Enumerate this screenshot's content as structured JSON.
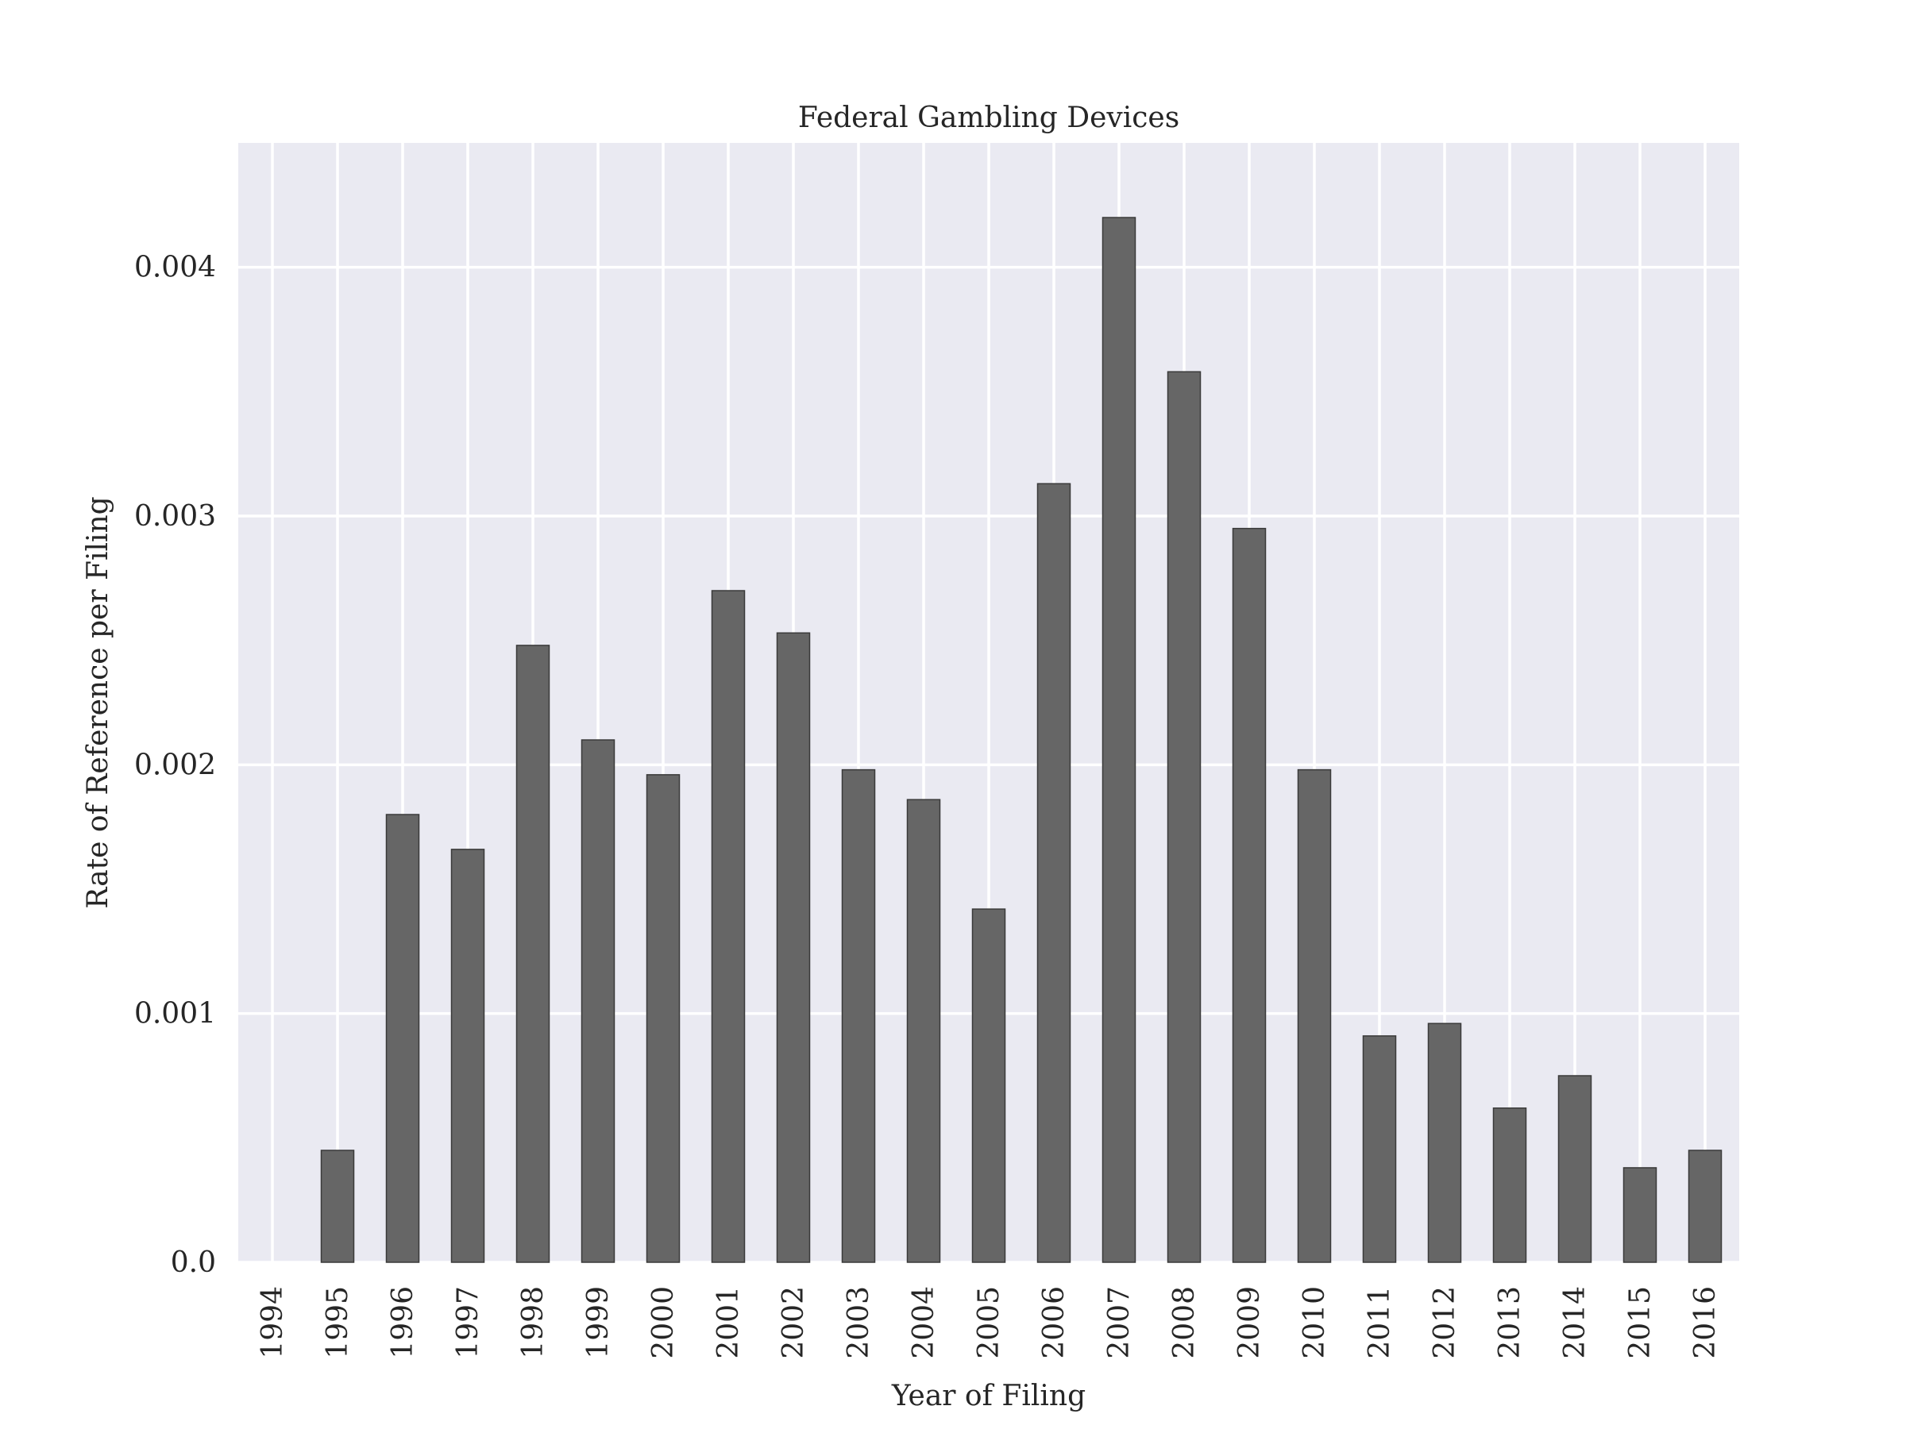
{
  "chart_data": {
    "type": "bar",
    "title": "Federal Gambling Devices",
    "xlabel": "Year of Filing",
    "ylabel": "Rate of Reference per Filing",
    "categories": [
      "1994",
      "1995",
      "1996",
      "1997",
      "1998",
      "1999",
      "2000",
      "2001",
      "2002",
      "2003",
      "2004",
      "2005",
      "2006",
      "2007",
      "2008",
      "2009",
      "2010",
      "2011",
      "2012",
      "2013",
      "2014",
      "2015",
      "2016"
    ],
    "values": [
      0.0,
      0.00045,
      0.0018,
      0.00166,
      0.00248,
      0.0021,
      0.00196,
      0.0027,
      0.00253,
      0.00198,
      0.00186,
      0.00142,
      0.00313,
      0.0042,
      0.00358,
      0.00295,
      0.00198,
      0.00091,
      0.00096,
      0.00062,
      0.00075,
      0.00038,
      0.00045
    ],
    "yticks": [
      0.0,
      0.001,
      0.002,
      0.003,
      0.004
    ],
    "ytick_labels": [
      "0.0",
      "0.001",
      "0.002",
      "0.003",
      "0.004"
    ],
    "ylim": [
      0,
      0.0045
    ],
    "grid": true,
    "colors": {
      "background": "#eaeaf2",
      "grid": "#ffffff",
      "bar_fill": "#666666",
      "bar_edge": "#3a3a3a"
    }
  }
}
